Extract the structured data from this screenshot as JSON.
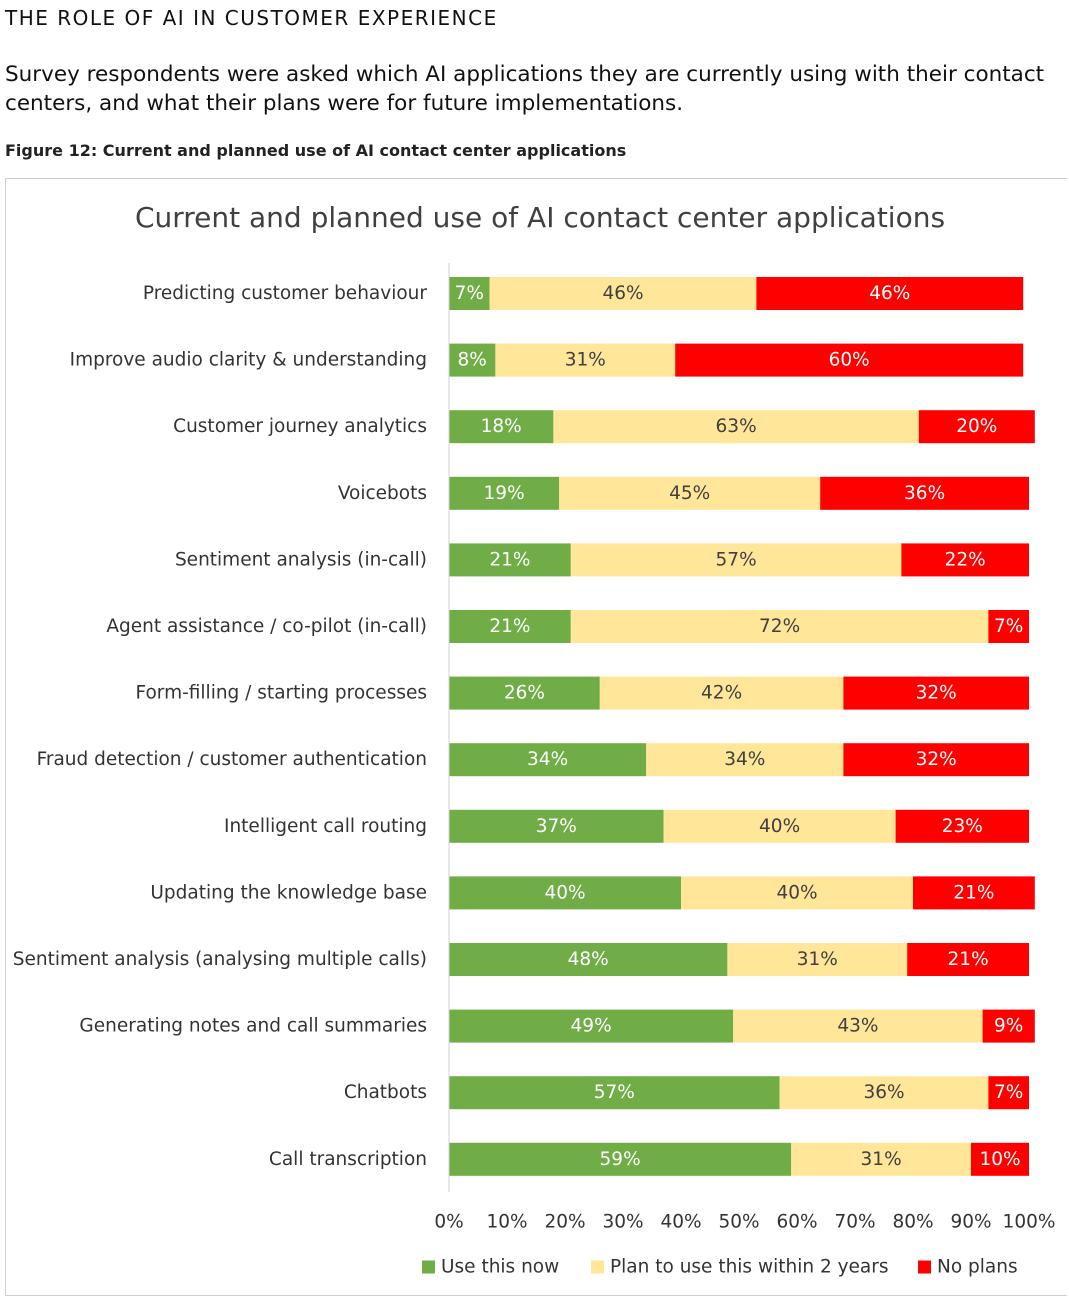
{
  "page": {
    "section_title": "THE ROLE OF AI IN CUSTOMER EXPERIENCE",
    "intro": "Survey respondents were asked which AI applications they are currently using with their contact centers, and what their plans were for future implementations.",
    "figure_caption": "Figure 12: Current and planned use of AI contact center applications"
  },
  "chart_data": {
    "type": "bar",
    "orientation": "horizontal",
    "stacked": true,
    "title": "Current and planned use of AI contact center applications",
    "categories": [
      "Predicting customer behaviour",
      "Improve audio clarity & understanding",
      "Customer journey analytics",
      "Voicebots",
      "Sentiment analysis (in-call)",
      "Agent assistance / co-pilot (in-call)",
      "Form-filling / starting processes",
      "Fraud detection / customer authentication",
      "Intelligent call routing",
      "Updating the knowledge base",
      "Sentiment analysis (analysing multiple calls)",
      "Generating notes and call summaries",
      "Chatbots",
      "Call transcription"
    ],
    "series": [
      {
        "name": "Use this now",
        "color": "#70AD47",
        "label_color": "#ffffff",
        "values": [
          7,
          8,
          18,
          19,
          21,
          21,
          26,
          34,
          37,
          40,
          48,
          49,
          57,
          59
        ]
      },
      {
        "name": "Plan to use this within 2 years",
        "color": "#FFE699",
        "label_color": "#404040",
        "values": [
          46,
          31,
          63,
          45,
          57,
          72,
          42,
          34,
          40,
          40,
          31,
          43,
          36,
          31
        ]
      },
      {
        "name": "No plans",
        "color": "#FF0000",
        "label_color": "#ffffff",
        "values": [
          46,
          60,
          20,
          36,
          22,
          7,
          32,
          32,
          23,
          21,
          21,
          9,
          7,
          10
        ]
      }
    ],
    "xlim": [
      0,
      100
    ],
    "xticks": [
      "0%",
      "10%",
      "20%",
      "30%",
      "40%",
      "50%",
      "60%",
      "70%",
      "80%",
      "90%",
      "100%"
    ],
    "value_suffix": "%",
    "grid": false,
    "legend_position": "bottom"
  }
}
